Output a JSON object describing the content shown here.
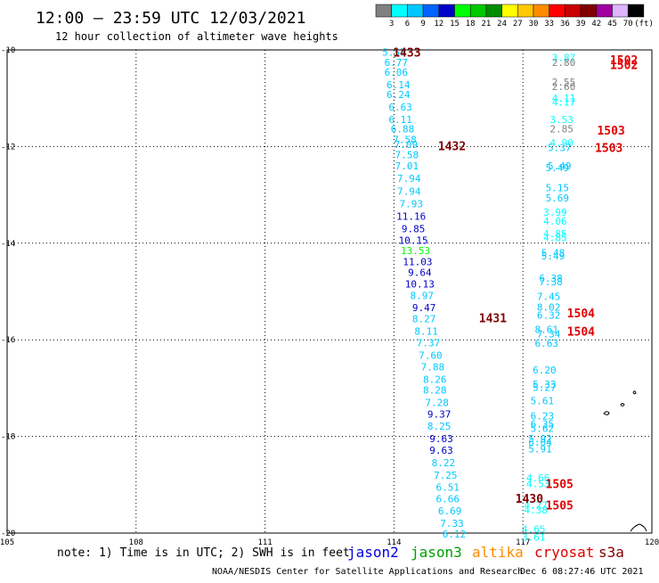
{
  "header": {
    "title": "12:00 – 23:59 UTC 12/03/2021",
    "subtitle": "12 hour collection of altimeter wave heights"
  },
  "colorbar": {
    "bins": [
      "3",
      "6",
      "9",
      "12",
      "15",
      "18",
      "21",
      "24",
      "27",
      "30",
      "33",
      "36",
      "39",
      "42",
      "45",
      "70"
    ],
    "unit": "(ft)",
    "colors": [
      "#808080",
      "#00ffff",
      "#00c8ff",
      "#0064ff",
      "#0000c8",
      "#00ff00",
      "#00c800",
      "#008c00",
      "#ffff00",
      "#ffc800",
      "#ff8c00",
      "#ff0000",
      "#c80000",
      "#800000",
      "#a000a0",
      "#dcb4ff",
      "#000000"
    ]
  },
  "axes": {
    "lon_ticks": [
      "105",
      "108",
      "111",
      "114",
      "117",
      "120"
    ],
    "lat_ticks": [
      "-10",
      "-12",
      "-14",
      "-16",
      "-18",
      "-20"
    ],
    "lon_range": [
      105,
      120
    ],
    "lat_range": [
      -20,
      -10
    ]
  },
  "observations": [
    {
      "lon": 114.0,
      "lat": -10.05,
      "v": "5.57",
      "c": "#00c8ff"
    },
    {
      "lon": 114.05,
      "lat": -10.26,
      "v": "6.77",
      "c": "#00c8ff"
    },
    {
      "lon": 114.05,
      "lat": -10.46,
      "v": "6.06",
      "c": "#00c8ff"
    },
    {
      "lon": 114.1,
      "lat": -10.72,
      "v": "6.14",
      "c": "#00c8ff"
    },
    {
      "lon": 114.1,
      "lat": -10.92,
      "v": "6.24",
      "c": "#00c8ff"
    },
    {
      "lon": 114.15,
      "lat": -11.18,
      "v": "6.63",
      "c": "#00c8ff"
    },
    {
      "lon": 114.15,
      "lat": -11.44,
      "v": "6.11",
      "c": "#00c8ff"
    },
    {
      "lon": 114.2,
      "lat": -11.63,
      "v": "6.88",
      "c": "#00c8ff"
    },
    {
      "lon": 114.25,
      "lat": -11.85,
      "v": "7.58",
      "c": "#00c8ff"
    },
    {
      "lon": 114.28,
      "lat": -11.96,
      "v": "7.09",
      "c": "#00c8ff"
    },
    {
      "lon": 114.3,
      "lat": -12.17,
      "v": "7.58",
      "c": "#00c8ff"
    },
    {
      "lon": 114.3,
      "lat": -12.4,
      "v": "7.01",
      "c": "#00c8ff"
    },
    {
      "lon": 114.35,
      "lat": -12.66,
      "v": "7.94",
      "c": "#00c8ff"
    },
    {
      "lon": 114.35,
      "lat": -12.92,
      "v": "7.94",
      "c": "#00c8ff"
    },
    {
      "lon": 114.4,
      "lat": -13.18,
      "v": "7.93",
      "c": "#00c8ff"
    },
    {
      "lon": 114.4,
      "lat": -13.44,
      "v": "11.16",
      "c": "#0000c8"
    },
    {
      "lon": 114.45,
      "lat": -13.7,
      "v": "9.85",
      "c": "#0000c8"
    },
    {
      "lon": 114.45,
      "lat": -13.94,
      "v": "10.15",
      "c": "#0000c8"
    },
    {
      "lon": 114.5,
      "lat": -14.15,
      "v": "13.53",
      "c": "#00ff00"
    },
    {
      "lon": 114.55,
      "lat": -14.38,
      "v": "11.03",
      "c": "#0000c8"
    },
    {
      "lon": 114.6,
      "lat": -14.6,
      "v": "9.64",
      "c": "#0000c8"
    },
    {
      "lon": 114.6,
      "lat": -14.84,
      "v": "10.13",
      "c": "#0000c8"
    },
    {
      "lon": 114.65,
      "lat": -15.08,
      "v": "8.97",
      "c": "#00c8ff"
    },
    {
      "lon": 114.7,
      "lat": -15.33,
      "v": "9.47",
      "c": "#0000c8"
    },
    {
      "lon": 114.7,
      "lat": -15.56,
      "v": "8.27",
      "c": "#00c8ff"
    },
    {
      "lon": 114.75,
      "lat": -15.82,
      "v": "8.11",
      "c": "#00c8ff"
    },
    {
      "lon": 114.8,
      "lat": -16.06,
      "v": "7.37",
      "c": "#00c8ff"
    },
    {
      "lon": 114.85,
      "lat": -16.32,
      "v": "7.60",
      "c": "#00c8ff"
    },
    {
      "lon": 114.9,
      "lat": -16.56,
      "v": "7.88",
      "c": "#00c8ff"
    },
    {
      "lon": 114.95,
      "lat": -16.82,
      "v": "8.26",
      "c": "#00c8ff"
    },
    {
      "lon": 114.95,
      "lat": -17.04,
      "v": "8.28",
      "c": "#00c8ff"
    },
    {
      "lon": 115.0,
      "lat": -17.3,
      "v": "7.28",
      "c": "#00c8ff"
    },
    {
      "lon": 115.05,
      "lat": -17.54,
      "v": "9.37",
      "c": "#0000c8"
    },
    {
      "lon": 115.05,
      "lat": -17.79,
      "v": "8.25",
      "c": "#00c8ff"
    },
    {
      "lon": 115.1,
      "lat": -18.04,
      "v": "9.63",
      "c": "#0000c8"
    },
    {
      "lon": 115.1,
      "lat": -18.28,
      "v": "9.63",
      "c": "#0000c8"
    },
    {
      "lon": 115.15,
      "lat": -18.54,
      "v": "8.22",
      "c": "#00c8ff"
    },
    {
      "lon": 115.2,
      "lat": -18.8,
      "v": "7.25",
      "c": "#00c8ff"
    },
    {
      "lon": 115.25,
      "lat": -19.05,
      "v": "6.51",
      "c": "#00c8ff"
    },
    {
      "lon": 115.25,
      "lat": -19.29,
      "v": "6.66",
      "c": "#00c8ff"
    },
    {
      "lon": 115.3,
      "lat": -19.54,
      "v": "6.69",
      "c": "#00c8ff"
    },
    {
      "lon": 115.35,
      "lat": -19.8,
      "v": "7.33",
      "c": "#00c8ff"
    },
    {
      "lon": 115.4,
      "lat": -20.02,
      "v": "6.12",
      "c": "#00c8ff"
    },
    {
      "lon": 117.95,
      "lat": -10.16,
      "v": "3.87",
      "c": "#00ffff"
    },
    {
      "lon": 117.95,
      "lat": -10.26,
      "v": "2.80",
      "c": "#808080"
    },
    {
      "lon": 117.95,
      "lat": -10.66,
      "v": "2.55",
      "c": "#808080"
    },
    {
      "lon": 117.95,
      "lat": -10.76,
      "v": "2.60",
      "c": "#808080"
    },
    {
      "lon": 117.95,
      "lat": -11.0,
      "v": "4.11",
      "c": "#00ffff"
    },
    {
      "lon": 117.95,
      "lat": -11.08,
      "v": "4.17",
      "c": "#00ffff"
    },
    {
      "lon": 117.9,
      "lat": -11.44,
      "v": "3.53",
      "c": "#00ffff"
    },
    {
      "lon": 117.9,
      "lat": -11.63,
      "v": "2.85",
      "c": "#808080"
    },
    {
      "lon": 117.9,
      "lat": -11.92,
      "v": "4.90",
      "c": "#00ffff"
    },
    {
      "lon": 117.85,
      "lat": -12.02,
      "v": "5.37",
      "c": "#00c8ff"
    },
    {
      "lon": 117.85,
      "lat": -12.4,
      "v": "5.49",
      "c": "#00c8ff"
    },
    {
      "lon": 117.8,
      "lat": -12.44,
      "v": "5.49",
      "c": "#00c8ff"
    },
    {
      "lon": 117.8,
      "lat": -12.85,
      "v": "5.15",
      "c": "#00c8ff"
    },
    {
      "lon": 117.8,
      "lat": -13.06,
      "v": "5.69",
      "c": "#00c8ff"
    },
    {
      "lon": 117.75,
      "lat": -13.36,
      "v": "3.99",
      "c": "#00ffff"
    },
    {
      "lon": 117.75,
      "lat": -13.54,
      "v": "4.06",
      "c": "#00ffff"
    },
    {
      "lon": 117.75,
      "lat": -13.8,
      "v": "4.85",
      "c": "#00ffff"
    },
    {
      "lon": 117.75,
      "lat": -13.88,
      "v": "4.85",
      "c": "#00ffff"
    },
    {
      "lon": 117.7,
      "lat": -14.2,
      "v": "5.48",
      "c": "#00c8ff"
    },
    {
      "lon": 117.7,
      "lat": -14.26,
      "v": "5.49",
      "c": "#00c8ff"
    },
    {
      "lon": 117.65,
      "lat": -14.72,
      "v": "6.38",
      "c": "#00c8ff"
    },
    {
      "lon": 117.65,
      "lat": -14.8,
      "v": "7.38",
      "c": "#00c8ff"
    },
    {
      "lon": 117.6,
      "lat": -15.1,
      "v": "7.45",
      "c": "#00c8ff"
    },
    {
      "lon": 117.6,
      "lat": -15.32,
      "v": "8.02",
      "c": "#00c8ff"
    },
    {
      "lon": 117.6,
      "lat": -15.49,
      "v": "6.32",
      "c": "#00c8ff"
    },
    {
      "lon": 117.55,
      "lat": -15.78,
      "v": "8.61",
      "c": "#00c8ff"
    },
    {
      "lon": 117.6,
      "lat": -15.88,
      "v": "7.34",
      "c": "#00c8ff"
    },
    {
      "lon": 117.55,
      "lat": -16.07,
      "v": "6.63",
      "c": "#00c8ff"
    },
    {
      "lon": 117.5,
      "lat": -16.62,
      "v": "6.20",
      "c": "#00c8ff"
    },
    {
      "lon": 117.5,
      "lat": -16.92,
      "v": "5.33",
      "c": "#00c8ff"
    },
    {
      "lon": 117.5,
      "lat": -16.98,
      "v": "5.27",
      "c": "#00c8ff"
    },
    {
      "lon": 117.45,
      "lat": -17.26,
      "v": "5.61",
      "c": "#00c8ff"
    },
    {
      "lon": 117.45,
      "lat": -17.57,
      "v": "6.23",
      "c": "#00c8ff"
    },
    {
      "lon": 117.45,
      "lat": -17.74,
      "v": "6.35",
      "c": "#00c8ff"
    },
    {
      "lon": 117.45,
      "lat": -17.83,
      "v": "5.62",
      "c": "#00c8ff"
    },
    {
      "lon": 117.4,
      "lat": -18.04,
      "v": "5.92",
      "c": "#00c8ff"
    },
    {
      "lon": 117.4,
      "lat": -18.12,
      "v": "6.04",
      "c": "#00c8ff"
    },
    {
      "lon": 117.4,
      "lat": -18.26,
      "v": "5.91",
      "c": "#00c8ff"
    },
    {
      "lon": 117.35,
      "lat": -18.86,
      "v": "4.66",
      "c": "#00ffff"
    },
    {
      "lon": 117.35,
      "lat": -18.98,
      "v": "4.53",
      "c": "#00ffff"
    },
    {
      "lon": 117.3,
      "lat": -19.42,
      "v": "4.27",
      "c": "#00ffff"
    },
    {
      "lon": 117.3,
      "lat": -19.52,
      "v": "4.38",
      "c": "#00ffff"
    },
    {
      "lon": 117.25,
      "lat": -19.92,
      "v": "4.65",
      "c": "#00ffff"
    },
    {
      "lon": 117.25,
      "lat": -20.08,
      "v": "3.61",
      "c": "#00ffff"
    }
  ],
  "pass_times": [
    {
      "lon": 114.3,
      "lat": -10.05,
      "v": "1433",
      "c": "#800000"
    },
    {
      "lon": 115.35,
      "lat": -11.98,
      "v": "1432",
      "c": "#800000"
    },
    {
      "lon": 116.3,
      "lat": -15.54,
      "v": "1431",
      "c": "#800000"
    },
    {
      "lon": 117.15,
      "lat": -19.28,
      "v": "1430",
      "c": "#800000"
    },
    {
      "lon": 119.35,
      "lat": -10.2,
      "v": "1502",
      "c": "#e00000"
    },
    {
      "lon": 119.35,
      "lat": -10.3,
      "v": "1502",
      "c": "#e00000"
    },
    {
      "lon": 119.05,
      "lat": -11.66,
      "v": "1503",
      "c": "#e00000"
    },
    {
      "lon": 119.0,
      "lat": -12.02,
      "v": "1503",
      "c": "#e00000"
    },
    {
      "lon": 118.35,
      "lat": -15.44,
      "v": "1504",
      "c": "#e00000"
    },
    {
      "lon": 118.35,
      "lat": -15.82,
      "v": "1504",
      "c": "#e00000"
    },
    {
      "lon": 117.85,
      "lat": -18.98,
      "v": "1505",
      "c": "#e00000"
    },
    {
      "lon": 117.85,
      "lat": -19.42,
      "v": "1505",
      "c": "#e00000"
    }
  ],
  "footer": {
    "note": "note: 1) Time is in UTC; 2) SWH is in feet",
    "satellites": [
      {
        "name": "jason2",
        "color": "#0000e0"
      },
      {
        "name": "jason3",
        "color": "#00a000"
      },
      {
        "name": "altika",
        "color": "#ff8c00"
      },
      {
        "name": "cryosat",
        "color": "#e00000"
      },
      {
        "name": "s3a",
        "color": "#800000"
      }
    ],
    "credit": "NOAA/NESDIS Center for Satellite Applications and Research",
    "timestamp": "Dec  6 08:27:46 UTC 2021"
  }
}
